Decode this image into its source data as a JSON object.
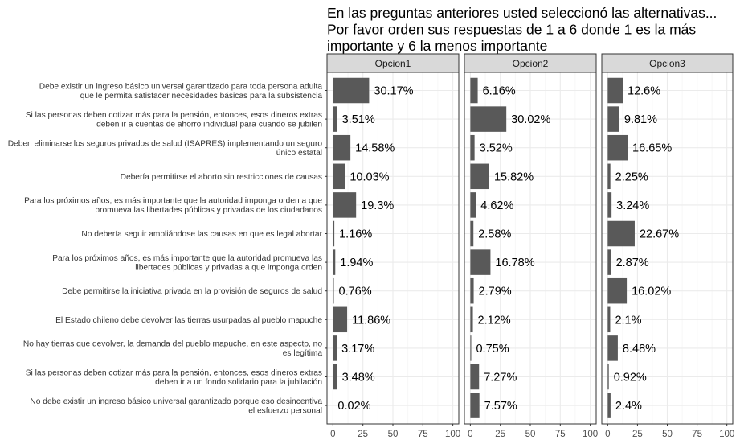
{
  "chart_data": {
    "type": "bar",
    "orientation": "horizontal",
    "title": "En las preguntas anteriores usted seleccionó las alternativas...\nPor favor orden sus respuestas de 1 a 6 donde 1 es la más\nimportante y 6 la menos importante",
    "xlim": [
      0,
      100
    ],
    "xticks": [
      0,
      25,
      50,
      75,
      100
    ],
    "grid": true,
    "categories": [
      "Debe existir un ingreso básico universal garantizado para toda persona adulta\nque le permita satisfacer necesidades básicas para la subsistencia",
      "Si las personas deben cotizar más para la pensión, entonces, esos dineros extras\ndeben ir a cuentas de ahorro individual para cuando se jubilen",
      "Deben eliminarse los seguros privados de salud (ISAPRES) implementando un seguro\núnico estatal",
      "Debería permitirse el aborto sin restricciones de causas",
      "Para los próximos años, es más importante que la autoridad imponga orden a que\npromueva las libertades públicas y privadas de los ciudadanos",
      "No debería seguir ampliándose las causas en que es legal abortar",
      "Para los próximos años, es más importante que la autoridad promueva las\nlibertades públicas y privadas a que imponga orden",
      "Debe permitirse la iniciativa privada en la provisión de seguros de salud",
      "El Estado chileno debe devolver las tierras usurpadas al pueblo mapuche",
      "No hay tierras que devolver, la demanda del pueblo mapuche, en este aspecto, no\nes legítima",
      "Si las personas deben cotizar más para la pensión, entonces, esos dineros extras\ndeben ir a un fondo solidario para la jubilación",
      "No debe existir un ingreso básico universal garantizado porque eso desincentiva\nel esfuerzo personal"
    ],
    "panels": [
      {
        "name": "Opcion1",
        "values": [
          30.17,
          3.51,
          14.58,
          10.03,
          19.3,
          1.16,
          1.94,
          0.76,
          11.86,
          3.17,
          3.48,
          0.02
        ],
        "labels": [
          "30.17%",
          "3.51%",
          "14.58%",
          "10.03%",
          "19.3%",
          "1.16%",
          "1.94%",
          "0.76%",
          "11.86%",
          "3.17%",
          "3.48%",
          "0.02%"
        ]
      },
      {
        "name": "Opcion2",
        "values": [
          6.16,
          30.02,
          3.52,
          15.82,
          4.62,
          2.58,
          16.78,
          2.79,
          2.12,
          0.75,
          7.27,
          7.57
        ],
        "labels": [
          "6.16%",
          "30.02%",
          "3.52%",
          "15.82%",
          "4.62%",
          "2.58%",
          "16.78%",
          "2.79%",
          "2.12%",
          "0.75%",
          "7.27%",
          "7.57%"
        ]
      },
      {
        "name": "Opcion3",
        "values": [
          12.6,
          9.81,
          16.65,
          2.25,
          3.24,
          22.67,
          2.87,
          16.02,
          2.1,
          8.48,
          0.92,
          2.4
        ],
        "labels": [
          "12.6%",
          "9.81%",
          "16.65%",
          "2.25%",
          "3.24%",
          "22.67%",
          "2.87%",
          "16.02%",
          "2.1%",
          "8.48%",
          "0.92%",
          "2.4%"
        ]
      }
    ],
    "colors": {
      "bar": "#595959",
      "panel_border": "#333333",
      "strip_fill": "#d9d9d9",
      "grid_major": "#ebebeb",
      "grid_minor": "#f5f5f5"
    }
  }
}
